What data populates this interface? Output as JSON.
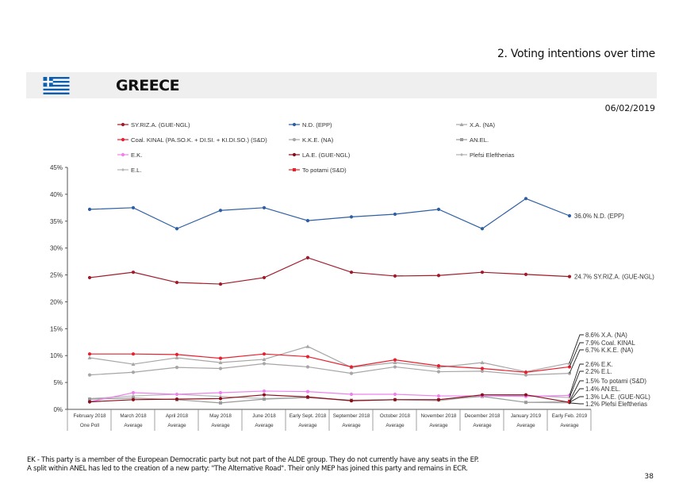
{
  "header": {
    "section": "2. Voting intentions over time",
    "country": "GREECE",
    "date": "06/02/2019"
  },
  "footer": {
    "notes": [
      "EK - This party is a member of the European Democratic party but not part of the ALDE group. They do not currently have any seats in the EP.",
      "A split within ANEL has led to the creation of a new party: \"The Alternative Road\". Their only MEP has joined this party and remains in ECR."
    ],
    "page": "38"
  },
  "chart_data": {
    "type": "line",
    "ylim": [
      0,
      45
    ],
    "yticks": [
      "0%",
      "5%",
      "10%",
      "15%",
      "20%",
      "25%",
      "30%",
      "35%",
      "40%",
      "45%"
    ],
    "grid": false,
    "legend": "top",
    "categories": [
      "February 2018",
      "March 2018",
      "April 2018",
      "May 2018",
      "June 2018",
      "Early Sept. 2018",
      "September 2018",
      "October 2018",
      "November 2018",
      "December 2018",
      "January 2019",
      "Early Feb. 2019"
    ],
    "subcategories": [
      "One Poll",
      "Average",
      "Average",
      "Average",
      "Average",
      "Average",
      "Average",
      "Average",
      "Average",
      "Average",
      "Average",
      "Average"
    ],
    "series": [
      {
        "name": "SY.RIZ.A. (GUE-NGL)",
        "color": "#a01a2a",
        "marker": "circle",
        "values": [
          24.5,
          25.5,
          23.6,
          23.3,
          24.5,
          28.2,
          25.5,
          24.8,
          24.9,
          25.5,
          25.1,
          24.7
        ]
      },
      {
        "name": "N.D. (EPP)",
        "color": "#2e5fa3",
        "marker": "circle",
        "values": [
          37.2,
          37.5,
          33.6,
          37.0,
          37.5,
          35.1,
          35.8,
          36.3,
          37.2,
          33.6,
          39.2,
          36.0
        ]
      },
      {
        "name": "X.A. (NA)",
        "color": "#a6a6a6",
        "marker": "triangle",
        "values": [
          9.6,
          8.4,
          9.6,
          8.7,
          9.3,
          11.7,
          7.8,
          8.7,
          7.8,
          8.7,
          7.0,
          8.6
        ]
      },
      {
        "name": "Coal. KINAL (PA.SO.K. + DI.SI. + KI.DI.SO.) (S&D)",
        "color": "#e8202e",
        "marker": "circle",
        "values": [
          10.3,
          10.3,
          10.2,
          9.5,
          10.3,
          9.8,
          7.9,
          9.2,
          8.1,
          7.6,
          6.9,
          7.9
        ]
      },
      {
        "name": "K.K.E. (NA)",
        "color": "#a6a6a6",
        "marker": "circle",
        "values": [
          6.4,
          6.9,
          7.8,
          7.6,
          8.5,
          7.9,
          6.7,
          7.9,
          7.0,
          7.1,
          6.4,
          6.7
        ]
      },
      {
        "name": "AN.EL.",
        "color": "#9a9a9a",
        "marker": "square",
        "values": [
          1.9,
          2.1,
          1.8,
          1.2,
          1.9,
          2.2,
          1.7,
          1.8,
          1.8,
          2.4,
          1.3,
          1.4
        ]
      },
      {
        "name": "E.K.",
        "color": "#ee82ee",
        "marker": "circle",
        "values": [
          1.4,
          3.1,
          2.8,
          3.1,
          3.4,
          3.3,
          2.8,
          2.8,
          2.5,
          2.5,
          2.4,
          2.6
        ]
      },
      {
        "name": "LA.E. (GUE-NGL)",
        "color": "#8b0d1a",
        "marker": "circle",
        "values": [
          1.4,
          1.8,
          1.9,
          2.0,
          2.7,
          2.3,
          1.6,
          1.8,
          1.8,
          2.7,
          2.7,
          1.3
        ]
      },
      {
        "name": "Plefsi Eleftherias",
        "color": "#b0b0b0",
        "marker": "diamond",
        "values": [
          null,
          null,
          null,
          null,
          null,
          null,
          null,
          null,
          null,
          null,
          1.3,
          1.2
        ]
      },
      {
        "name": "E.L.",
        "color": "#b5b5b5",
        "marker": "diamond",
        "values": [
          2.0,
          2.5,
          2.8,
          2.4,
          2.0,
          2.2,
          1.6,
          1.8,
          1.6,
          2.5,
          2.6,
          2.2
        ]
      },
      {
        "name": "To potami (S&D)",
        "color": "#e8202e",
        "marker": "square",
        "values": [
          null,
          null,
          null,
          null,
          null,
          null,
          null,
          null,
          null,
          null,
          null,
          1.5
        ]
      }
    ],
    "end_labels": [
      "36.0% N.D. (EPP)",
      "24.7% SY.RIZ.A. (GUE-NGL)",
      "8.6% X.A. (NA)",
      "7.9% Coal. KINAL",
      "6.7% K.K.E. (NA)",
      "2.6% E.K.",
      "2.2% E.L.",
      "1.5% To potami (S&D)",
      "1.4% AN.EL.",
      "1.3% LA.E. (GUE-NGL)",
      "1.2% Plefsi Eleftherias"
    ]
  }
}
